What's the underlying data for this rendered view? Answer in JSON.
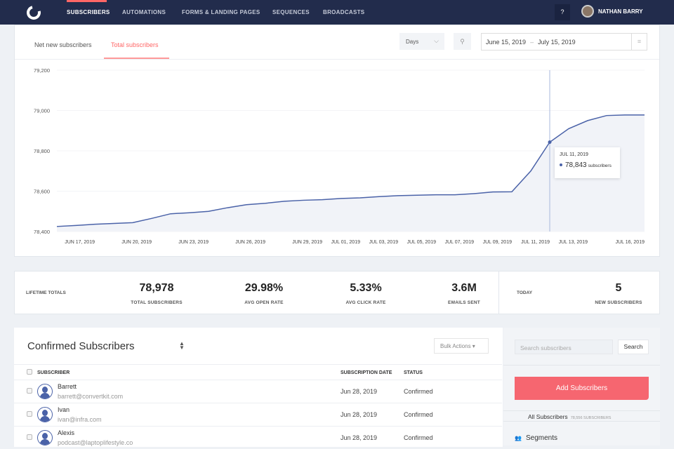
{
  "nav": {
    "items": [
      "SUBSCRIBERS",
      "AUTOMATIONS",
      "FORMS & LANDING PAGES",
      "SEQUENCES",
      "BROADCASTS"
    ],
    "active": "SUBSCRIBERS",
    "help": "?",
    "user": "NATHAN BARRY"
  },
  "chart_header": {
    "tabs": [
      "Net new subscribers",
      "Total subscribers"
    ],
    "active_tab": "Total subscribers",
    "interval": "Days",
    "date_start": "June 15, 2019",
    "date_sep": "–",
    "date_end": "July 15, 2019"
  },
  "chart_data": {
    "type": "area",
    "x": [
      "2019-06-15",
      "2019-06-16",
      "2019-06-17",
      "2019-06-18",
      "2019-06-19",
      "2019-06-20",
      "2019-06-21",
      "2019-06-22",
      "2019-06-23",
      "2019-06-24",
      "2019-06-25",
      "2019-06-26",
      "2019-06-27",
      "2019-06-28",
      "2019-06-29",
      "2019-06-30",
      "2019-07-01",
      "2019-07-02",
      "2019-07-03",
      "2019-07-04",
      "2019-07-05",
      "2019-07-06",
      "2019-07-07",
      "2019-07-08",
      "2019-07-09",
      "2019-07-10",
      "2019-07-11",
      "2019-07-12",
      "2019-07-13",
      "2019-07-14",
      "2019-07-15",
      "2019-07-16"
    ],
    "values": [
      78425,
      78430,
      78436,
      78440,
      78444,
      78465,
      78488,
      78493,
      78500,
      78518,
      78533,
      78540,
      78550,
      78555,
      78558,
      78564,
      78567,
      78573,
      78578,
      78580,
      78582,
      78582,
      78588,
      78596,
      78597,
      78700,
      78843,
      78910,
      78950,
      78975,
      78978,
      78978
    ],
    "ylim": [
      78400,
      79200
    ],
    "yticks": [
      "78,400",
      "78,600",
      "78,800",
      "79,000",
      "79,200"
    ],
    "ytick_values": [
      78400,
      78600,
      78800,
      79000,
      79200
    ],
    "xticks": [
      {
        "label": "JUN 17, 2019",
        "date": "2019-06-17"
      },
      {
        "label": "JUN 20, 2019",
        "date": "2019-06-20"
      },
      {
        "label": "JUN 23, 2019",
        "date": "2019-06-23"
      },
      {
        "label": "JUN 26, 2019",
        "date": "2019-06-26"
      },
      {
        "label": "JUN 29, 2019",
        "date": "2019-06-29"
      },
      {
        "label": "JUL 01, 2019",
        "date": "2019-07-01"
      },
      {
        "label": "JUL 03, 2019",
        "date": "2019-07-03"
      },
      {
        "label": "JUL 05, 2019",
        "date": "2019-07-05"
      },
      {
        "label": "JUL 07, 2019",
        "date": "2019-07-07"
      },
      {
        "label": "JUL 09, 2019",
        "date": "2019-07-09"
      },
      {
        "label": "JUL 11, 2019",
        "date": "2019-07-11"
      },
      {
        "label": "JUL 13, 2019",
        "date": "2019-07-13"
      },
      {
        "label": "JUL 16, 2019",
        "date": "2019-07-16"
      }
    ],
    "grid": true,
    "line_color": "#4a62a8",
    "fill_color": "#f1f3f8",
    "tooltip": {
      "date": "JUL 11, 2019",
      "value": "78,843",
      "unit": "subscribers",
      "x": "2019-07-11"
    }
  },
  "stats": {
    "lifetime_label": "LIFETIME TOTALS",
    "items": [
      {
        "value": "78,978",
        "label": "TOTAL SUBSCRIBERS"
      },
      {
        "value": "29.98%",
        "label": "AVG OPEN RATE"
      },
      {
        "value": "5.33%",
        "label": "AVG CLICK RATE"
      },
      {
        "value": "3.6M",
        "label": "EMAILS SENT"
      }
    ],
    "today_label": "TODAY",
    "today": {
      "value": "5",
      "label": "NEW SUBSCRIBERS"
    }
  },
  "table": {
    "title": "Confirmed Subscribers",
    "bulk_actions": "Bulk Actions ▾",
    "columns": [
      "SUBSCRIBER",
      "SUBSCRIPTION DATE",
      "STATUS"
    ],
    "rows": [
      {
        "name": "Barrett",
        "email": "barrett@convertkit.com",
        "date": "Jun 28, 2019",
        "status": "Confirmed"
      },
      {
        "name": "Ivan",
        "email": "ivan@infra.com",
        "date": "Jun 28, 2019",
        "status": "Confirmed"
      },
      {
        "name": "Alexis",
        "email": "podcast@laptoplifestyle.co",
        "date": "Jun 28, 2019",
        "status": "Confirmed"
      }
    ]
  },
  "sidebar": {
    "search_placeholder": "Search subscribers",
    "search_button": "Search",
    "add_button": "Add Subscribers",
    "all_subscribers": "All Subscribers",
    "all_count": "78,556 SUBSCRIBERS",
    "segments": "Segments"
  },
  "colors": {
    "nav": "#222c4c",
    "accent": "#f66670",
    "line": "#4a62a8"
  }
}
